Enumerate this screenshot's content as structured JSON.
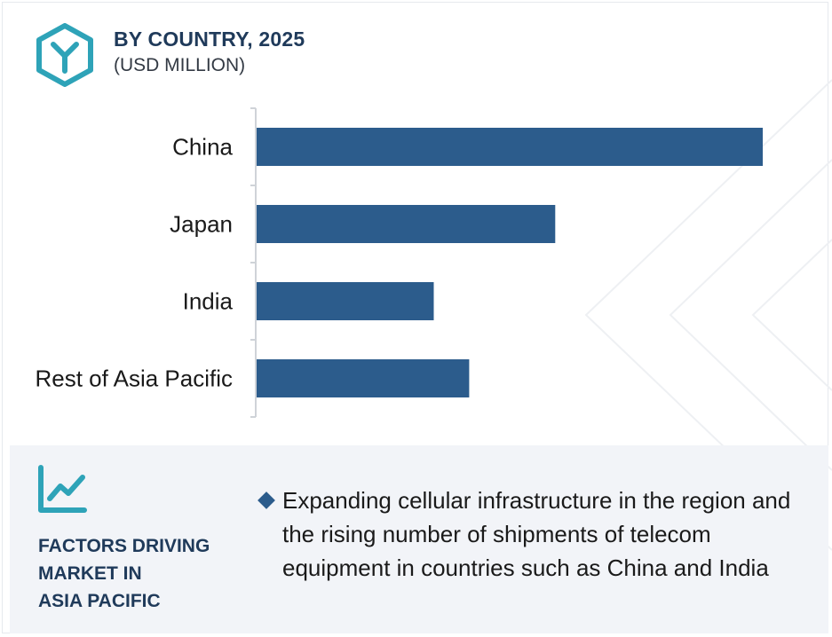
{
  "header": {
    "title": "BY COUNTRY, 2025",
    "subtitle": "(USD MILLION)",
    "logo_icon": "hexagon-y-logo-icon"
  },
  "colors": {
    "bar": "#2c5c8c",
    "accent": "#2ea3b8",
    "title": "#1f3a5a",
    "panel_bg": "#f2f4f8"
  },
  "chart_data": {
    "type": "bar",
    "orientation": "horizontal",
    "title": "BY COUNTRY, 2025",
    "subtitle": "(USD MILLION)",
    "categories": [
      "China",
      "Japan",
      "India",
      "Rest of Asia Pacific"
    ],
    "values": [
      100,
      59,
      35,
      42
    ],
    "xlabel": "",
    "ylabel": "",
    "xlim": [
      0,
      100
    ],
    "grid": false,
    "legend": "none"
  },
  "factors": {
    "heading": "FACTORS DRIVING\nMARKET IN\nASIA PACIFIC",
    "icon": "trend-line-chart-icon",
    "bullets": [
      "Expanding cellular infrastructure in the region and the rising number of shipments of telecom equipment in countries such as China and India"
    ]
  }
}
